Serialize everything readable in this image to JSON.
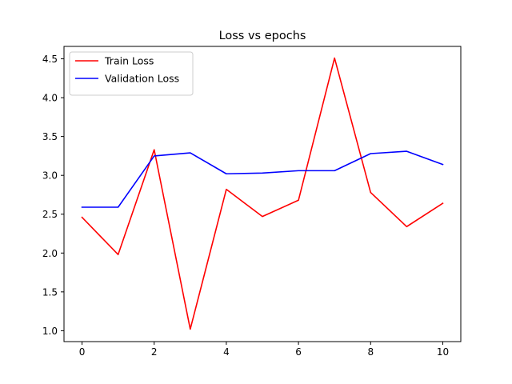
{
  "chart_data": {
    "type": "line",
    "title": "Loss vs epochs",
    "xlabel": "",
    "ylabel": "",
    "x": [
      0,
      1,
      2,
      3,
      4,
      5,
      6,
      7,
      8,
      9,
      10
    ],
    "xlim": [
      -0.5,
      10.5
    ],
    "ylim": [
      0.86,
      4.66
    ],
    "xticks": [
      0,
      2,
      4,
      6,
      8,
      10
    ],
    "xtick_labels": [
      "0",
      "2",
      "4",
      "6",
      "8",
      "10"
    ],
    "yticks": [
      1.0,
      1.5,
      2.0,
      2.5,
      3.0,
      3.5,
      4.0,
      4.5
    ],
    "ytick_labels": [
      "1.0",
      "1.5",
      "2.0",
      "2.5",
      "3.0",
      "3.5",
      "4.0",
      "4.5"
    ],
    "grid": false,
    "legend_position": "top-left",
    "series": [
      {
        "name": "Train Loss",
        "color": "#ff0000",
        "values": [
          2.46,
          1.98,
          3.33,
          1.02,
          2.82,
          2.47,
          2.68,
          4.51,
          2.78,
          2.34,
          2.64
        ]
      },
      {
        "name": "Validation Loss",
        "color": "#0000ff",
        "values": [
          2.59,
          2.59,
          3.25,
          3.29,
          3.02,
          3.03,
          3.06,
          3.06,
          3.28,
          3.31,
          3.14
        ]
      }
    ]
  }
}
